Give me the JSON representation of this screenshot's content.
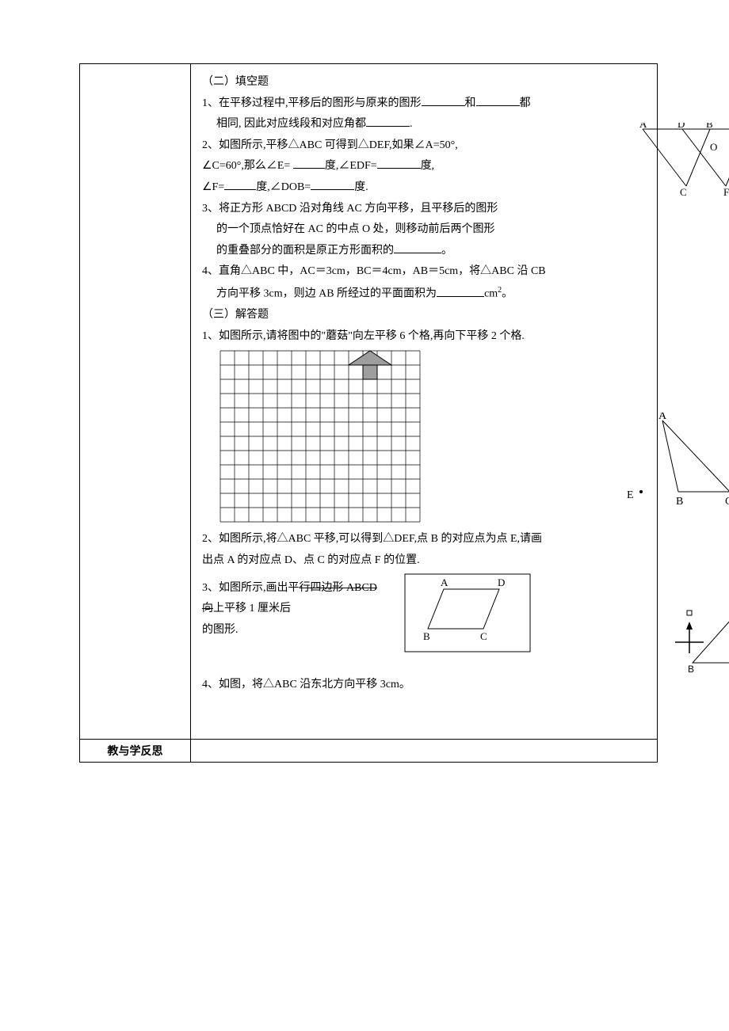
{
  "sections": {
    "fill_title": "（二）填空题",
    "solve_title": "（三）解答题"
  },
  "fill": {
    "q1": "1、在平移过程中,平移后的图形与原来的图形________和________都",
    "q1b": "相同, 因­此对应线段和对应角都________.",
    "q2a": "2、如图所示,平移△ABC 可得到△DEF,如果∠A=50°,",
    "q2b": "∠C=60°,那么∠E= ____­度,∠EDF=_______度,",
    "q2c": "∠F=______度,∠DOB=_______度.",
    "q3a": "3、将正方形 ABCD 沿对角线 AC 方向平移，且平移后的图形",
    "q3b": "的一个顶点恰好在 AC 的中点 O 处，则移动前后两个图形",
    "q3c": "的重叠部分的面积是原正方形面积的________。",
    "q4a": "4、直角△ABC 中，AC＝3cm，BC＝4cm，AB＝5cm，将△ABC 沿 CB",
    "q4b": "方向平移 3cm，则边 AB 所经过的平面面积为________cm",
    "q4sup": "2",
    "q4end": "。"
  },
  "solve": {
    "q1": "1、如图所示,请将图中的\"蘑菇\"向左平移 6 个格,再向下平移 2 个格.",
    "q2a": "2、如图所示,将△ABC 平移,可以得到△DEF,点 B 的对应点为点 E,请画",
    "q2b": "出点 A 的对­应点 D、点 C 的对应点 F 的位置.",
    "q3a": "3、如图所示,画出平行四边形 ABCD 向上平移 1 厘米后",
    "q3b": "的图形.",
    "q4": "4、如图，将△ABC 沿东北方向平移 3cm。"
  },
  "labels": {
    "reflect": "教与学反思",
    "A": "A",
    "B": "B",
    "C": "C",
    "D": "D",
    "E": "E",
    "F": "F",
    "O": "O"
  },
  "style": {
    "page_bg": "#ffffff",
    "text_color": "#000000",
    "border_color": "#000000",
    "grid_cols": 14,
    "grid_rows": 12,
    "grid_cell": 18,
    "mushroom_fill": "#9e9e9e",
    "font_size": 14
  }
}
